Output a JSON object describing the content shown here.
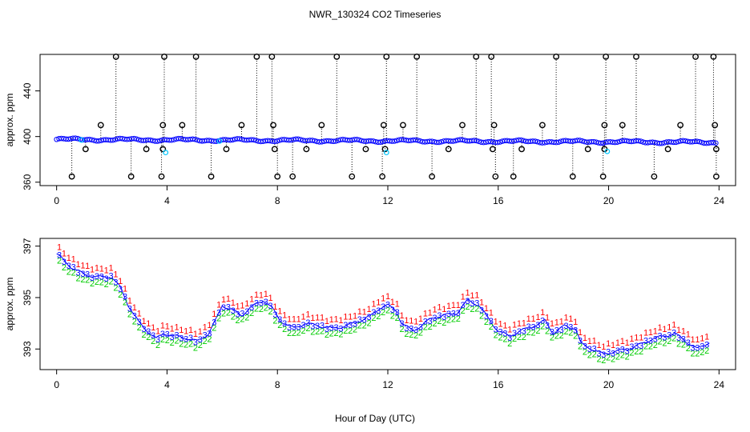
{
  "chart_data": {
    "title": "NWR_130324  CO2 Timeseries",
    "xlabel": "Hour of Day (UTC)",
    "colors": {
      "axis": "#000000",
      "raw_marker": "#000000",
      "flag_marker": "#00c8ff",
      "series_blue": "#0000ff",
      "series_red": "#ff0000",
      "series_green": "#00cc00",
      "dotted_stem": "#000000"
    },
    "panels": [
      {
        "name": "raw-panel",
        "type": "scatter",
        "ylabel": "approx. ppm",
        "xlim": [
          -0.6,
          24.6
        ],
        "ylim": [
          357,
          472
        ],
        "xticks": [
          0,
          4,
          8,
          12,
          16,
          20,
          24
        ],
        "yticks": [
          360,
          400,
          440
        ],
        "baseline_start": 397.5,
        "baseline_end": 395.0,
        "outlier_high": 470,
        "outlier_low": 365,
        "outlier_mid_high": 410,
        "outlier_mid_low": 389,
        "spikes_high_hours": [
          2.15,
          3.9,
          5.05,
          7.25,
          7.8,
          10.15,
          11.95,
          13.05,
          15.2,
          15.75,
          18.1,
          19.9,
          21.0,
          23.15,
          23.8
        ],
        "spikes_low_hours": [
          0.55,
          2.7,
          3.8,
          5.6,
          8.0,
          8.55,
          10.7,
          11.8,
          13.6,
          15.9,
          16.55,
          18.7,
          19.8,
          21.65,
          23.9
        ],
        "mid_high_hours": [
          1.6,
          3.85,
          4.55,
          6.7,
          7.85,
          9.6,
          11.85,
          12.55,
          14.7,
          15.85,
          17.6,
          19.85,
          20.5,
          22.6,
          23.85
        ],
        "mid_low_hours": [
          1.05,
          3.25,
          3.85,
          6.15,
          7.9,
          9.05,
          11.2,
          11.9,
          14.2,
          15.8,
          16.85,
          19.25,
          19.85,
          22.15,
          23.9
        ],
        "flag_points": [
          [
            3.95,
            386
          ],
          [
            11.95,
            386
          ],
          [
            19.95,
            387
          ],
          [
            0.9,
            397
          ],
          [
            5.9,
            396
          ]
        ]
      },
      {
        "name": "averaged-panel",
        "type": "line",
        "ylabel": "approx. ppm",
        "xlim": [
          -0.6,
          24.6
        ],
        "ylim": [
          392.2,
          397.3
        ],
        "xticks": [
          0,
          4,
          8,
          12,
          16,
          20,
          24
        ],
        "yticks": [
          393,
          395,
          397
        ],
        "series_labels": [
          "1",
          "2",
          "3"
        ],
        "curve": [
          [
            0.0,
            396.7
          ],
          [
            0.2,
            396.5
          ],
          [
            0.5,
            396.2
          ],
          [
            1.0,
            395.9
          ],
          [
            1.5,
            395.8
          ],
          [
            2.0,
            395.8
          ],
          [
            2.3,
            395.4
          ],
          [
            2.6,
            394.7
          ],
          [
            3.0,
            394.0
          ],
          [
            3.3,
            393.7
          ],
          [
            3.6,
            393.4
          ],
          [
            3.9,
            393.6
          ],
          [
            4.3,
            393.5
          ],
          [
            4.8,
            393.4
          ],
          [
            5.1,
            393.3
          ],
          [
            5.5,
            393.6
          ],
          [
            5.8,
            394.2
          ],
          [
            6.0,
            394.7
          ],
          [
            6.4,
            394.5
          ],
          [
            6.7,
            394.3
          ],
          [
            7.0,
            394.6
          ],
          [
            7.5,
            394.9
          ],
          [
            7.8,
            394.6
          ],
          [
            8.1,
            394.1
          ],
          [
            8.6,
            393.8
          ],
          [
            9.0,
            394.0
          ],
          [
            9.5,
            393.9
          ],
          [
            10.0,
            393.8
          ],
          [
            10.5,
            393.9
          ],
          [
            11.0,
            394.1
          ],
          [
            11.4,
            394.3
          ],
          [
            11.7,
            394.6
          ],
          [
            12.0,
            394.7
          ],
          [
            12.3,
            394.5
          ],
          [
            12.5,
            394.0
          ],
          [
            12.9,
            393.7
          ],
          [
            13.2,
            393.9
          ],
          [
            13.6,
            394.2
          ],
          [
            14.0,
            394.3
          ],
          [
            14.5,
            394.4
          ],
          [
            14.9,
            394.9
          ],
          [
            15.3,
            394.7
          ],
          [
            15.7,
            394.1
          ],
          [
            16.0,
            393.7
          ],
          [
            16.4,
            393.5
          ],
          [
            16.8,
            393.7
          ],
          [
            17.3,
            393.9
          ],
          [
            17.7,
            394.1
          ],
          [
            18.0,
            393.6
          ],
          [
            18.4,
            393.9
          ],
          [
            18.8,
            393.8
          ],
          [
            19.0,
            393.2
          ],
          [
            19.4,
            393.0
          ],
          [
            19.8,
            392.8
          ],
          [
            20.2,
            392.9
          ],
          [
            20.7,
            393.0
          ],
          [
            21.2,
            393.2
          ],
          [
            21.6,
            393.4
          ],
          [
            22.0,
            393.5
          ],
          [
            22.4,
            393.6
          ],
          [
            22.8,
            393.3
          ],
          [
            23.2,
            393.0
          ],
          [
            23.7,
            393.3
          ]
        ]
      }
    ]
  }
}
